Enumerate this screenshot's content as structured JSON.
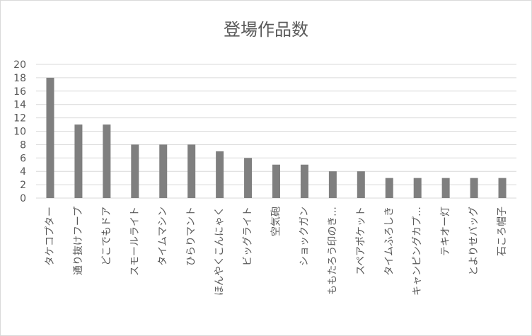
{
  "chart_data": {
    "type": "bar",
    "title": "登場作品数",
    "xlabel": "",
    "ylabel": "",
    "ylim": [
      0,
      20
    ],
    "yticks": [
      0,
      2,
      4,
      6,
      8,
      10,
      12,
      14,
      16,
      18,
      20
    ],
    "grid": true,
    "legend": "none",
    "bar_color": "#7f7f7f",
    "grid_color": "#d9d9d9",
    "categories": [
      "タケコプター",
      "通り抜けフープ",
      "どこでもドア",
      "スモールライト",
      "タイムマシン",
      "ひらりマント",
      "ほんやくこんにゃく",
      "ビッグライト",
      "空気砲",
      "ショックガン",
      "ももたろう印のき…",
      "スペアポケット",
      "タイムふろしき",
      "キャンピングカプ…",
      "テキオー灯",
      "とよりせバッグ",
      "石ころ帽子"
    ],
    "values": [
      18,
      11,
      11,
      8,
      8,
      8,
      7,
      6,
      5,
      5,
      4,
      4,
      3,
      3,
      3,
      3,
      3
    ]
  }
}
